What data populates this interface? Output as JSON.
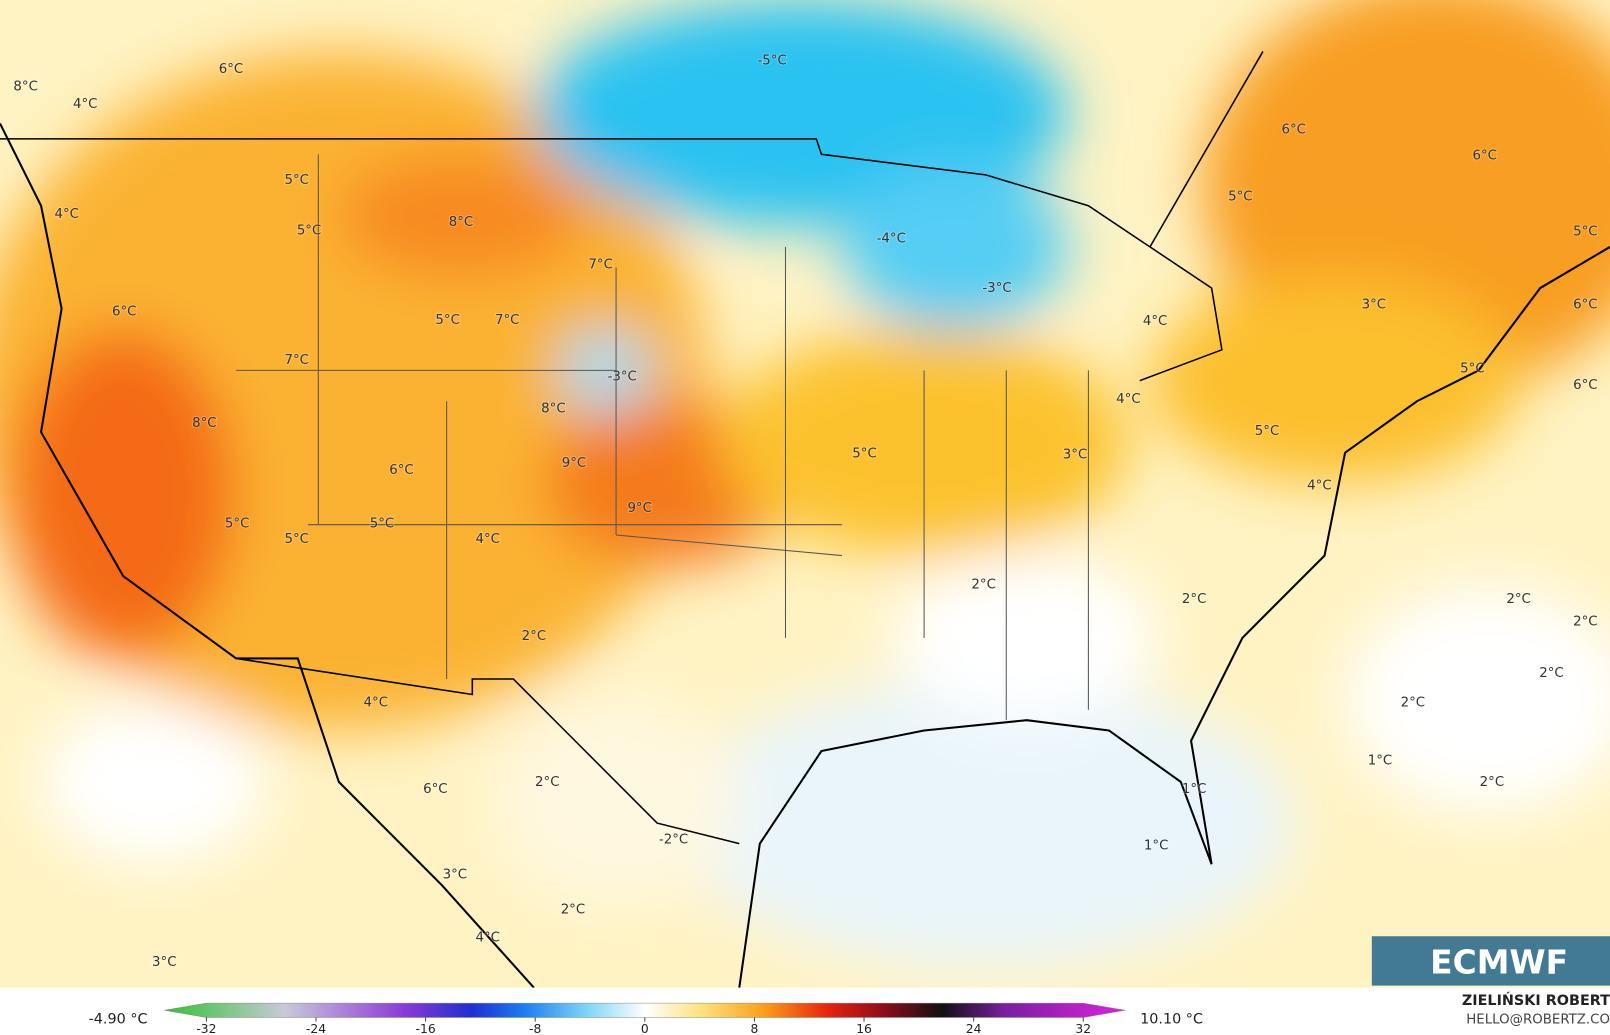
{
  "map_labels": [
    "6°C",
    "8°C",
    "4°C",
    "4°C",
    "5°C",
    "5°C",
    "8°C",
    "7°C",
    "6°C",
    "5°C",
    "7°C",
    "7°C",
    "-3°C",
    "8°C",
    "8°C",
    "9°C",
    "6°C",
    "9°C",
    "5°C",
    "5°C",
    "5°C",
    "4°C",
    "5°C",
    "2°C",
    "4°C",
    "2°C",
    "6°C",
    "-2°C",
    "3°C",
    "2°C",
    "4°C",
    "3°C",
    "-5°C",
    "-4°C",
    "-3°C",
    "6°C",
    "5°C",
    "6°C",
    "5°C",
    "3°C",
    "6°C",
    "4°C",
    "5°C",
    "6°C",
    "4°C",
    "5°C",
    "3°C",
    "4°C",
    "2°C",
    "2°C",
    "2°C",
    "2°C",
    "2°C",
    "2°C",
    "1°C",
    "2°C",
    "1°C",
    "1°C"
  ],
  "colorbar": {
    "ticks": [
      -32,
      -24,
      -16,
      -8,
      0,
      8,
      16,
      24,
      32
    ],
    "min_label": "-4.90 °C",
    "max_label": "10.10 °C"
  },
  "logo": "ECMWF",
  "credit": {
    "name": "ZIELIŃSKI ROBERT",
    "email": "HELLO@ROBERTZ.CO"
  }
}
